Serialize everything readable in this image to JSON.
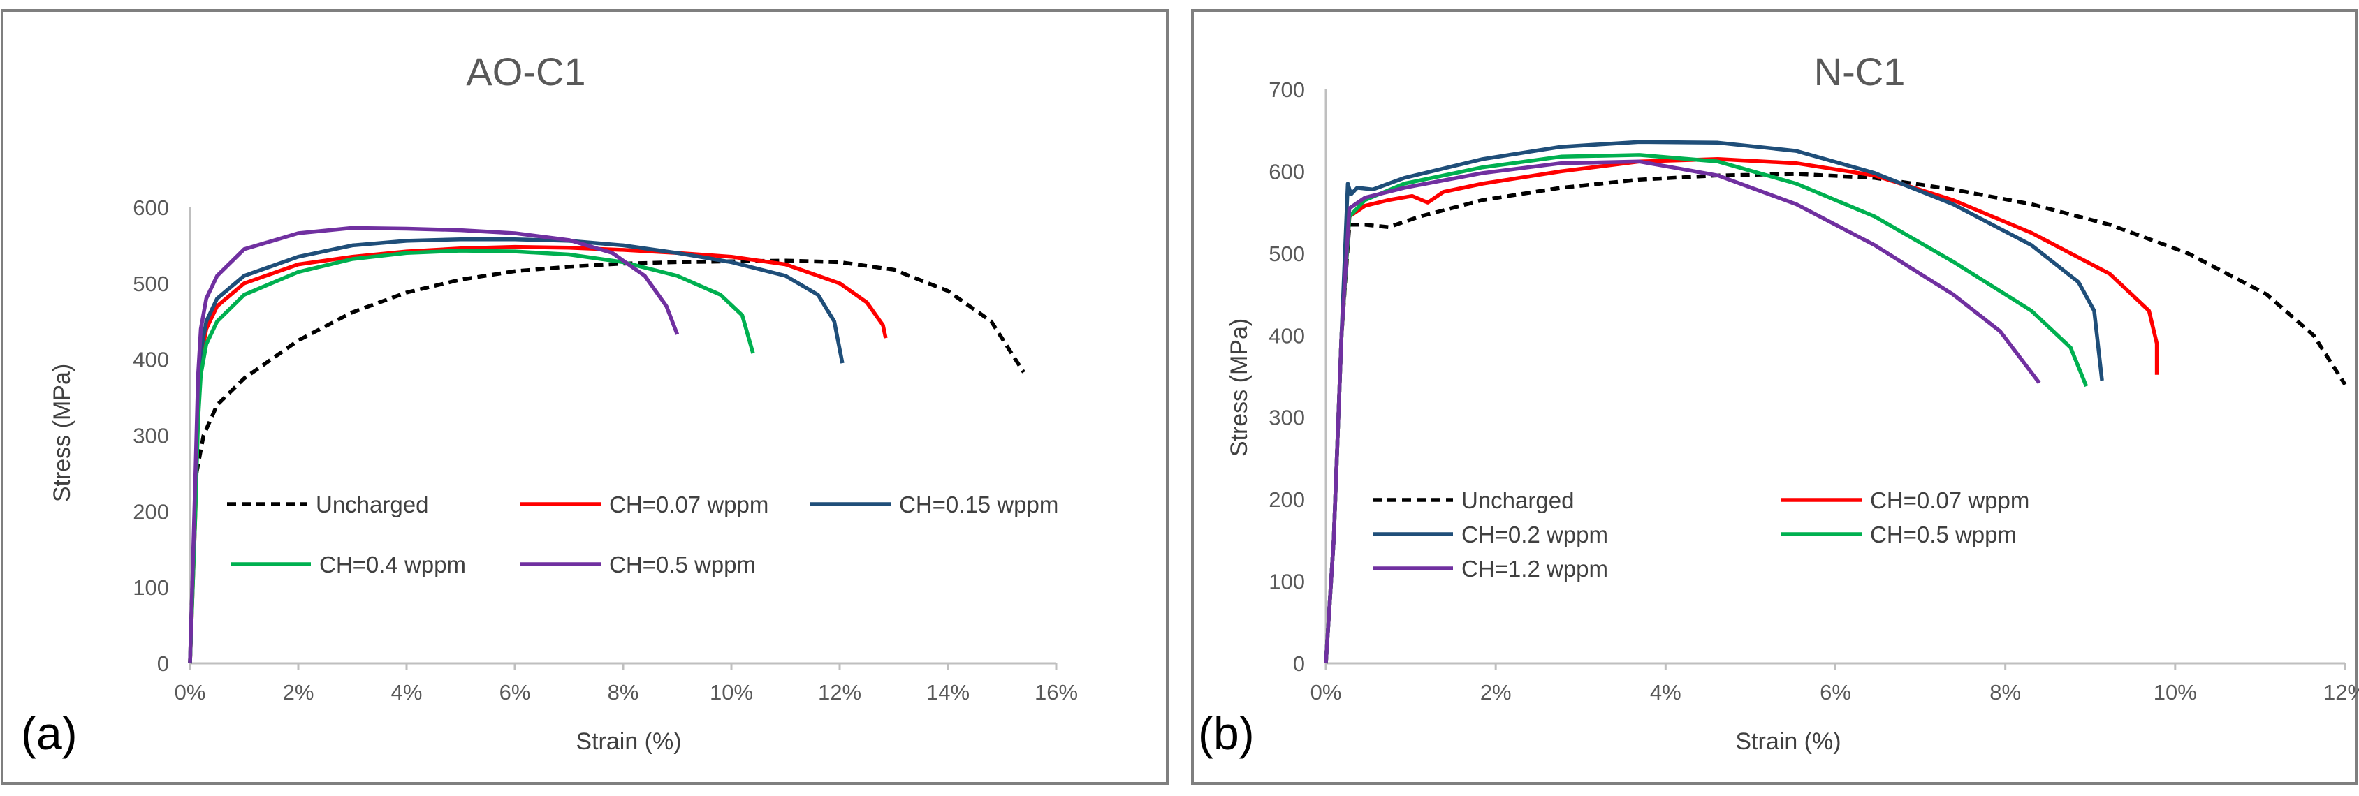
{
  "figure": {
    "panels": [
      "(a)",
      "(b)"
    ]
  },
  "chart_data": [
    {
      "type": "line",
      "panel_label": "(a)",
      "title": "AO-C1",
      "xlabel": "Strain (%)",
      "ylabel": "Stress (MPa)",
      "xlim": [
        0,
        16
      ],
      "ylim": [
        0,
        600
      ],
      "x_ticks": [
        "0%",
        "2%",
        "4%",
        "6%",
        "8%",
        "10%",
        "12%",
        "14%",
        "16%"
      ],
      "y_ticks": [
        "0",
        "100",
        "200",
        "300",
        "400",
        "500",
        "600"
      ],
      "grid": false,
      "legend_position": "lower-middle",
      "series": [
        {
          "name": "Uncharged",
          "color": "#000000",
          "dash": true,
          "points": [
            [
              0,
              0
            ],
            [
              0.05,
              120
            ],
            [
              0.12,
              250
            ],
            [
              0.25,
              300
            ],
            [
              0.5,
              340
            ],
            [
              1,
              375
            ],
            [
              2,
              425
            ],
            [
              3,
              462
            ],
            [
              4,
              488
            ],
            [
              5,
              505
            ],
            [
              6,
              516
            ],
            [
              7,
              522
            ],
            [
              8,
              526
            ],
            [
              9,
              528
            ],
            [
              10,
              529
            ],
            [
              11,
              530
            ],
            [
              12,
              528
            ],
            [
              13,
              518
            ],
            [
              14,
              490
            ],
            [
              14.8,
              450
            ],
            [
              15.4,
              383
            ]
          ]
        },
        {
          "name": "CH=0.07 wppm",
          "color": "#ff0000",
          "dash": false,
          "points": [
            [
              0,
              0
            ],
            [
              0.1,
              200
            ],
            [
              0.15,
              330
            ],
            [
              0.2,
              400
            ],
            [
              0.3,
              440
            ],
            [
              0.5,
              470
            ],
            [
              1,
              500
            ],
            [
              2,
              525
            ],
            [
              3,
              535
            ],
            [
              4,
              542
            ],
            [
              5,
              546
            ],
            [
              6,
              548
            ],
            [
              7,
              547
            ],
            [
              8,
              544
            ],
            [
              9,
              540
            ],
            [
              10,
              535
            ],
            [
              11,
              525
            ],
            [
              12,
              500
            ],
            [
              12.5,
              475
            ],
            [
              12.8,
              445
            ],
            [
              12.85,
              428
            ]
          ]
        },
        {
          "name": "CH=0.15 wppm",
          "color": "#1f4e79",
          "dash": false,
          "points": [
            [
              0,
              0
            ],
            [
              0.1,
              220
            ],
            [
              0.15,
              350
            ],
            [
              0.2,
              410
            ],
            [
              0.3,
              450
            ],
            [
              0.5,
              480
            ],
            [
              1,
              510
            ],
            [
              2,
              535
            ],
            [
              3,
              550
            ],
            [
              4,
              556
            ],
            [
              5,
              558
            ],
            [
              6,
              558
            ],
            [
              7,
              556
            ],
            [
              8,
              550
            ],
            [
              9,
              540
            ],
            [
              10,
              528
            ],
            [
              11,
              510
            ],
            [
              11.6,
              485
            ],
            [
              11.9,
              450
            ],
            [
              12.05,
              395
            ]
          ]
        },
        {
          "name": "CH=0.4 wppm",
          "color": "#00b050",
          "dash": false,
          "points": [
            [
              0,
              0
            ],
            [
              0.1,
              200
            ],
            [
              0.15,
              320
            ],
            [
              0.2,
              380
            ],
            [
              0.3,
              420
            ],
            [
              0.5,
              450
            ],
            [
              1,
              485
            ],
            [
              2,
              515
            ],
            [
              3,
              532
            ],
            [
              4,
              540
            ],
            [
              5,
              543
            ],
            [
              6,
              542
            ],
            [
              7,
              538
            ],
            [
              8,
              528
            ],
            [
              9,
              510
            ],
            [
              9.8,
              485
            ],
            [
              10.2,
              458
            ],
            [
              10.4,
              408
            ]
          ]
        },
        {
          "name": "CH=0.5 wppm",
          "color": "#7030a0",
          "dash": false,
          "points": [
            [
              0,
              0
            ],
            [
              0.1,
              250
            ],
            [
              0.15,
              380
            ],
            [
              0.2,
              440
            ],
            [
              0.3,
              480
            ],
            [
              0.5,
              510
            ],
            [
              1,
              545
            ],
            [
              2,
              566
            ],
            [
              3,
              573
            ],
            [
              4,
              572
            ],
            [
              5,
              570
            ],
            [
              6,
              566
            ],
            [
              7,
              557
            ],
            [
              7.8,
              540
            ],
            [
              8.4,
              510
            ],
            [
              8.8,
              470
            ],
            [
              9.0,
              433
            ]
          ]
        }
      ]
    },
    {
      "type": "line",
      "panel_label": "(b)",
      "title": "N-C1",
      "xlabel": "Strain (%)",
      "ylabel": "Stress (MPa)",
      "xlim": [
        0,
        13
      ],
      "ylim": [
        0,
        700
      ],
      "x_ticks": [
        "0%",
        "2%",
        "4%",
        "6%",
        "8%",
        "10%",
        "12%"
      ],
      "y_ticks": [
        "0",
        "100",
        "200",
        "300",
        "400",
        "500",
        "600",
        "700"
      ],
      "grid": false,
      "legend_position": "lower-middle",
      "series": [
        {
          "name": "Uncharged",
          "color": "#000000",
          "dash": true,
          "points": [
            [
              0,
              0
            ],
            [
              0.1,
              150
            ],
            [
              0.2,
              400
            ],
            [
              0.3,
              535
            ],
            [
              0.5,
              535
            ],
            [
              0.8,
              532
            ],
            [
              1.2,
              545
            ],
            [
              2,
              565
            ],
            [
              3,
              580
            ],
            [
              4,
              590
            ],
            [
              5,
              595
            ],
            [
              6,
              597
            ],
            [
              7,
              592
            ],
            [
              8,
              578
            ],
            [
              9,
              560
            ],
            [
              10,
              535
            ],
            [
              11,
              500
            ],
            [
              12,
              450
            ],
            [
              12.6,
              400
            ],
            [
              13,
              340
            ]
          ]
        },
        {
          "name": "CH=0.07 wppm",
          "color": "#ff0000",
          "dash": false,
          "points": [
            [
              0,
              0
            ],
            [
              0.1,
              150
            ],
            [
              0.2,
              400
            ],
            [
              0.3,
              545
            ],
            [
              0.5,
              558
            ],
            [
              0.8,
              565
            ],
            [
              1.1,
              570
            ],
            [
              1.3,
              562
            ],
            [
              1.5,
              575
            ],
            [
              2,
              585
            ],
            [
              3,
              600
            ],
            [
              4,
              612
            ],
            [
              5,
              615
            ],
            [
              6,
              610
            ],
            [
              7,
              595
            ],
            [
              8,
              565
            ],
            [
              9,
              525
            ],
            [
              10,
              475
            ],
            [
              10.5,
              430
            ],
            [
              10.6,
              390
            ],
            [
              10.6,
              352
            ]
          ]
        },
        {
          "name": "CH=0.2 wppm",
          "color": "#1f4e79",
          "dash": false,
          "points": [
            [
              0,
              0
            ],
            [
              0.1,
              150
            ],
            [
              0.2,
              400
            ],
            [
              0.28,
              585
            ],
            [
              0.32,
              572
            ],
            [
              0.4,
              580
            ],
            [
              0.6,
              578
            ],
            [
              0.8,
              585
            ],
            [
              1,
              592
            ],
            [
              2,
              615
            ],
            [
              3,
              630
            ],
            [
              4,
              636
            ],
            [
              5,
              635
            ],
            [
              6,
              625
            ],
            [
              7,
              598
            ],
            [
              8,
              560
            ],
            [
              9,
              510
            ],
            [
              9.6,
              465
            ],
            [
              9.8,
              430
            ],
            [
              9.9,
              345
            ]
          ]
        },
        {
          "name": "CH=0.5 wppm",
          "color": "#00b050",
          "dash": false,
          "points": [
            [
              0,
              0
            ],
            [
              0.1,
              150
            ],
            [
              0.2,
              400
            ],
            [
              0.3,
              545
            ],
            [
              0.5,
              565
            ],
            [
              1,
              585
            ],
            [
              2,
              605
            ],
            [
              3,
              618
            ],
            [
              4,
              620
            ],
            [
              5,
              612
            ],
            [
              6,
              585
            ],
            [
              7,
              545
            ],
            [
              8,
              490
            ],
            [
              9,
              430
            ],
            [
              9.5,
              385
            ],
            [
              9.7,
              338
            ]
          ]
        },
        {
          "name": "CH=1.2 wppm",
          "color": "#7030a0",
          "dash": false,
          "points": [
            [
              0,
              0
            ],
            [
              0.1,
              150
            ],
            [
              0.2,
              400
            ],
            [
              0.3,
              555
            ],
            [
              0.5,
              568
            ],
            [
              1,
              580
            ],
            [
              2,
              598
            ],
            [
              3,
              610
            ],
            [
              4,
              612
            ],
            [
              5,
              595
            ],
            [
              6,
              560
            ],
            [
              7,
              510
            ],
            [
              8,
              450
            ],
            [
              8.6,
              405
            ],
            [
              9.1,
              342
            ]
          ]
        }
      ]
    }
  ]
}
